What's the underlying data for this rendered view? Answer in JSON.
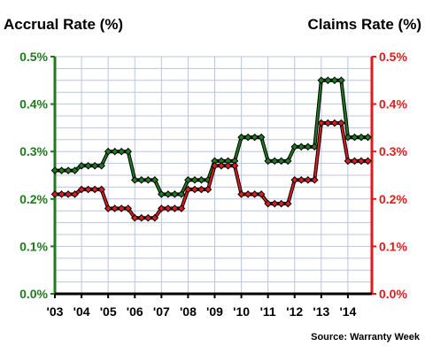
{
  "chart_data": {
    "type": "line",
    "title_left": "Accrual Rate (%)",
    "title_right": "Claims Rate (%)",
    "source": "Source: Warranty Week",
    "x_ticks": [
      "'03",
      "'04",
      "'05",
      "'06",
      "'07",
      "'08",
      "'09",
      "'10",
      "'11",
      "'12",
      "'13",
      "'14"
    ],
    "y_ticks": [
      "0.0%",
      "0.1%",
      "0.2%",
      "0.3%",
      "0.4%",
      "0.5%"
    ],
    "y_left_range": [
      0,
      0.5
    ],
    "y_right_range": [
      0,
      0.5
    ],
    "x_range": [
      2003,
      2014.9
    ],
    "grid": true,
    "series": [
      {
        "color": "#1e7b1e",
        "axis": "left",
        "x": [
          2003.0,
          2003.25,
          2003.5,
          2003.75,
          2004.0,
          2004.25,
          2004.5,
          2004.75,
          2005.0,
          2005.25,
          2005.5,
          2005.75,
          2006.0,
          2006.25,
          2006.5,
          2006.75,
          2007.0,
          2007.25,
          2007.5,
          2007.75,
          2008.0,
          2008.25,
          2008.5,
          2008.75,
          2009.0,
          2009.25,
          2009.5,
          2009.75,
          2010.0,
          2010.25,
          2010.5,
          2010.75,
          2011.0,
          2011.25,
          2011.5,
          2011.75,
          2012.0,
          2012.25,
          2012.5,
          2012.75,
          2013.0,
          2013.25,
          2013.5,
          2013.75,
          2014.0,
          2014.25,
          2014.5,
          2014.75
        ],
        "values": [
          0.26,
          0.26,
          0.26,
          0.26,
          0.27,
          0.27,
          0.27,
          0.27,
          0.3,
          0.3,
          0.3,
          0.3,
          0.24,
          0.24,
          0.24,
          0.24,
          0.21,
          0.21,
          0.21,
          0.21,
          0.24,
          0.24,
          0.24,
          0.24,
          0.28,
          0.28,
          0.28,
          0.28,
          0.33,
          0.33,
          0.33,
          0.33,
          0.28,
          0.28,
          0.28,
          0.28,
          0.31,
          0.31,
          0.31,
          0.31,
          0.45,
          0.45,
          0.45,
          0.45,
          0.33,
          0.33,
          0.33,
          0.33
        ]
      },
      {
        "color": "#e31a1a",
        "axis": "right",
        "x": [
          2003.0,
          2003.25,
          2003.5,
          2003.75,
          2004.0,
          2004.25,
          2004.5,
          2004.75,
          2005.0,
          2005.25,
          2005.5,
          2005.75,
          2006.0,
          2006.25,
          2006.5,
          2006.75,
          2007.0,
          2007.25,
          2007.5,
          2007.75,
          2008.0,
          2008.25,
          2008.5,
          2008.75,
          2009.0,
          2009.25,
          2009.5,
          2009.75,
          2010.0,
          2010.25,
          2010.5,
          2010.75,
          2011.0,
          2011.25,
          2011.5,
          2011.75,
          2012.0,
          2012.25,
          2012.5,
          2012.75,
          2013.0,
          2013.25,
          2013.5,
          2013.75,
          2014.0,
          2014.25,
          2014.5,
          2014.75
        ],
        "values": [
          0.21,
          0.21,
          0.21,
          0.21,
          0.22,
          0.22,
          0.22,
          0.22,
          0.18,
          0.18,
          0.18,
          0.18,
          0.16,
          0.16,
          0.16,
          0.16,
          0.18,
          0.18,
          0.18,
          0.18,
          0.22,
          0.22,
          0.22,
          0.22,
          0.27,
          0.27,
          0.27,
          0.27,
          0.21,
          0.21,
          0.21,
          0.21,
          0.19,
          0.19,
          0.19,
          0.19,
          0.24,
          0.24,
          0.24,
          0.24,
          0.36,
          0.36,
          0.36,
          0.36,
          0.28,
          0.28,
          0.28,
          0.28
        ]
      }
    ],
    "colors": {
      "left_axis": "#1e7b1e",
      "right_axis": "#e31a1a",
      "grid": "#b8c6dc"
    }
  }
}
